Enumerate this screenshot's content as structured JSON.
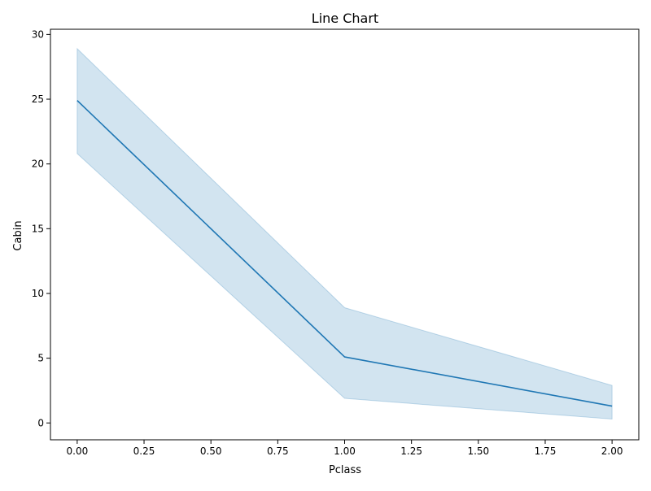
{
  "chart_data": {
    "type": "line",
    "title": "Line Chart",
    "xlabel": "Pclass",
    "ylabel": "Cabin",
    "xlim": [
      -0.1,
      2.1
    ],
    "ylim": [
      -1.3,
      30.4
    ],
    "x_ticks": [
      0.0,
      0.25,
      0.5,
      0.75,
      1.0,
      1.25,
      1.5,
      1.75,
      2.0
    ],
    "x_tick_labels": [
      "0.00",
      "0.25",
      "0.50",
      "0.75",
      "1.00",
      "1.25",
      "1.50",
      "1.75",
      "2.00"
    ],
    "y_ticks": [
      0,
      5,
      10,
      15,
      20,
      25,
      30
    ],
    "y_tick_labels": [
      "0",
      "5",
      "10",
      "15",
      "20",
      "25",
      "30"
    ],
    "grid": false,
    "series": [
      {
        "x": [
          0,
          1,
          2
        ],
        "values": [
          24.9,
          5.1,
          1.3
        ],
        "ci_lower": [
          20.8,
          1.9,
          0.3
        ],
        "ci_upper": [
          28.9,
          8.9,
          2.9
        ],
        "color": "#1f77b4",
        "band_color": "#1f77b4"
      }
    ]
  }
}
